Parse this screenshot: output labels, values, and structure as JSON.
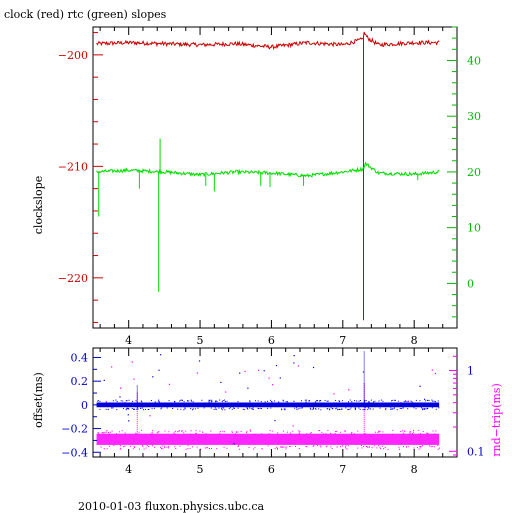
{
  "title": "clock (red) rtc (green) slopes",
  "footer": "2010-01-03 fluxon.physics.ubc.ca",
  "colors": {
    "clock": "#cc0000",
    "rtc": "#00dd00",
    "offset": "#0000dd",
    "rndtrip": "#ff00ff",
    "axis_black": "#000000",
    "tick_red": "#cc0000",
    "tick_green": "#00bb00",
    "tick_blue": "#0000cc",
    "tick_magenta": "#ff00ff"
  },
  "chart_data": [
    {
      "type": "line",
      "ylabel": "clockslope",
      "xlim": [
        3.5,
        8.6
      ],
      "ylim": [
        -224.5,
        -197.5
      ],
      "y2lim": [
        -8,
        46
      ],
      "x_ticks": [
        "4",
        "5",
        "6",
        "7",
        "8"
      ],
      "y_ticks": [
        "-200",
        "-210",
        "-220"
      ],
      "y2_ticks": [
        "0",
        "10",
        "20",
        "30",
        "40"
      ],
      "grid": false,
      "series": [
        {
          "axis": "left",
          "x": [
            3.55,
            4.0,
            4.5,
            5.0,
            5.5,
            6.0,
            6.5,
            7.0,
            7.28,
            7.3,
            7.35,
            7.5,
            8.0,
            8.35
          ],
          "y": [
            -199.0,
            -198.9,
            -199.0,
            -199.1,
            -199.0,
            -199.3,
            -198.9,
            -199.1,
            -198.6,
            -198.0,
            -198.5,
            -199.1,
            -198.9,
            -198.9
          ],
          "spikes": [
            {
              "x": 7.29,
              "y": -223.8
            }
          ]
        },
        {
          "axis": "right",
          "x": [
            3.55,
            4.0,
            4.5,
            5.0,
            5.5,
            6.0,
            6.5,
            7.0,
            7.28,
            7.32,
            7.5,
            8.0,
            8.35
          ],
          "y": [
            20.0,
            20.3,
            20.0,
            19.5,
            20.0,
            19.8,
            19.3,
            20.0,
            20.5,
            21.5,
            19.8,
            19.6,
            20.0
          ],
          "spikes": [
            {
              "x": 3.58,
              "y": 12.0
            },
            {
              "x": 4.15,
              "y": 17.0
            },
            {
              "x": 4.42,
              "y": -1.5
            },
            {
              "x": 4.44,
              "y": 26.0
            },
            {
              "x": 5.08,
              "y": 17.5
            },
            {
              "x": 5.2,
              "y": 16.5
            },
            {
              "x": 5.85,
              "y": 17.5
            },
            {
              "x": 5.98,
              "y": 17.3
            },
            {
              "x": 6.45,
              "y": 17.5
            },
            {
              "x": 8.05,
              "y": 18.5
            }
          ]
        }
      ]
    },
    {
      "type": "scatter",
      "ylabel": "offset(ms)",
      "y2label": "rnd−trip(ms)",
      "xlim": [
        3.5,
        8.6
      ],
      "ylim": [
        -0.44,
        0.48
      ],
      "y2lim_log": [
        0.085,
        1.9
      ],
      "x_ticks": [
        "4",
        "5",
        "6",
        "7",
        "8"
      ],
      "y_ticks": [
        "0.4",
        "0.2",
        "0",
        "−0.2",
        "−0.4"
      ],
      "y2_ticks": [
        "1",
        "0.1"
      ],
      "grid": false,
      "series": [
        {
          "axis": "left",
          "x_range": [
            3.55,
            8.35
          ],
          "y_center": 0.0,
          "y_spread": 0.02,
          "spikes": [
            {
              "x": 4.12,
              "y": 0.17
            },
            {
              "x": 7.3,
              "y": 0.45
            }
          ]
        },
        {
          "axis": "right",
          "x_range": [
            3.55,
            8.35
          ],
          "y_center": 0.14,
          "y_low": 0.12,
          "y_high": 0.165,
          "spikes": [
            {
              "x": 4.12,
              "y": 0.55
            },
            {
              "x": 7.3,
              "y": 0.7
            }
          ]
        }
      ]
    }
  ]
}
